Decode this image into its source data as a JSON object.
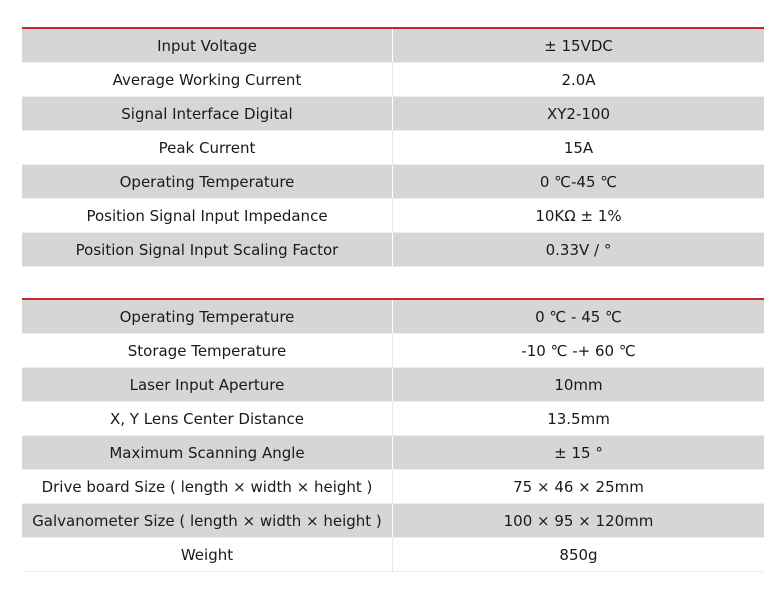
{
  "tables": [
    {
      "rows": [
        {
          "label": "Input Voltage",
          "value": "± 15VDC"
        },
        {
          "label": "Average Working Current",
          "value": "2.0A"
        },
        {
          "label": "Signal Interface Digital",
          "value": "XY2-100"
        },
        {
          "label": "Peak Current",
          "value": "15A"
        },
        {
          "label": "Operating Temperature",
          "value": "0 ℃-45 ℃"
        },
        {
          "label": "Position Signal Input Impedance",
          "value": "10KΩ ± 1%"
        },
        {
          "label": "Position Signal Input Scaling Factor",
          "value": "0.33V / °"
        }
      ]
    },
    {
      "rows": [
        {
          "label": "Operating Temperature",
          "value": "0 ℃ - 45 ℃"
        },
        {
          "label": "Storage Temperature",
          "value": "-10 ℃ -+ 60 ℃"
        },
        {
          "label": "Laser Input Aperture",
          "value": "10mm"
        },
        {
          "label": "X, Y Lens Center Distance",
          "value": "13.5mm"
        },
        {
          "label": "Maximum Scanning Angle",
          "value": "± 15 °"
        },
        {
          "label": "Drive board Size ( length × width × height )",
          "value": "75 × 46 × 25mm"
        },
        {
          "label": "Galvanometer Size ( length × width × height )",
          "value": "100 × 95 × 120mm"
        },
        {
          "label": "Weight",
          "value": "850g"
        }
      ]
    }
  ],
  "colors": {
    "accent_rule": "#c8262c",
    "row_shade": "#d6d6d6",
    "row_plain": "#ffffff"
  }
}
